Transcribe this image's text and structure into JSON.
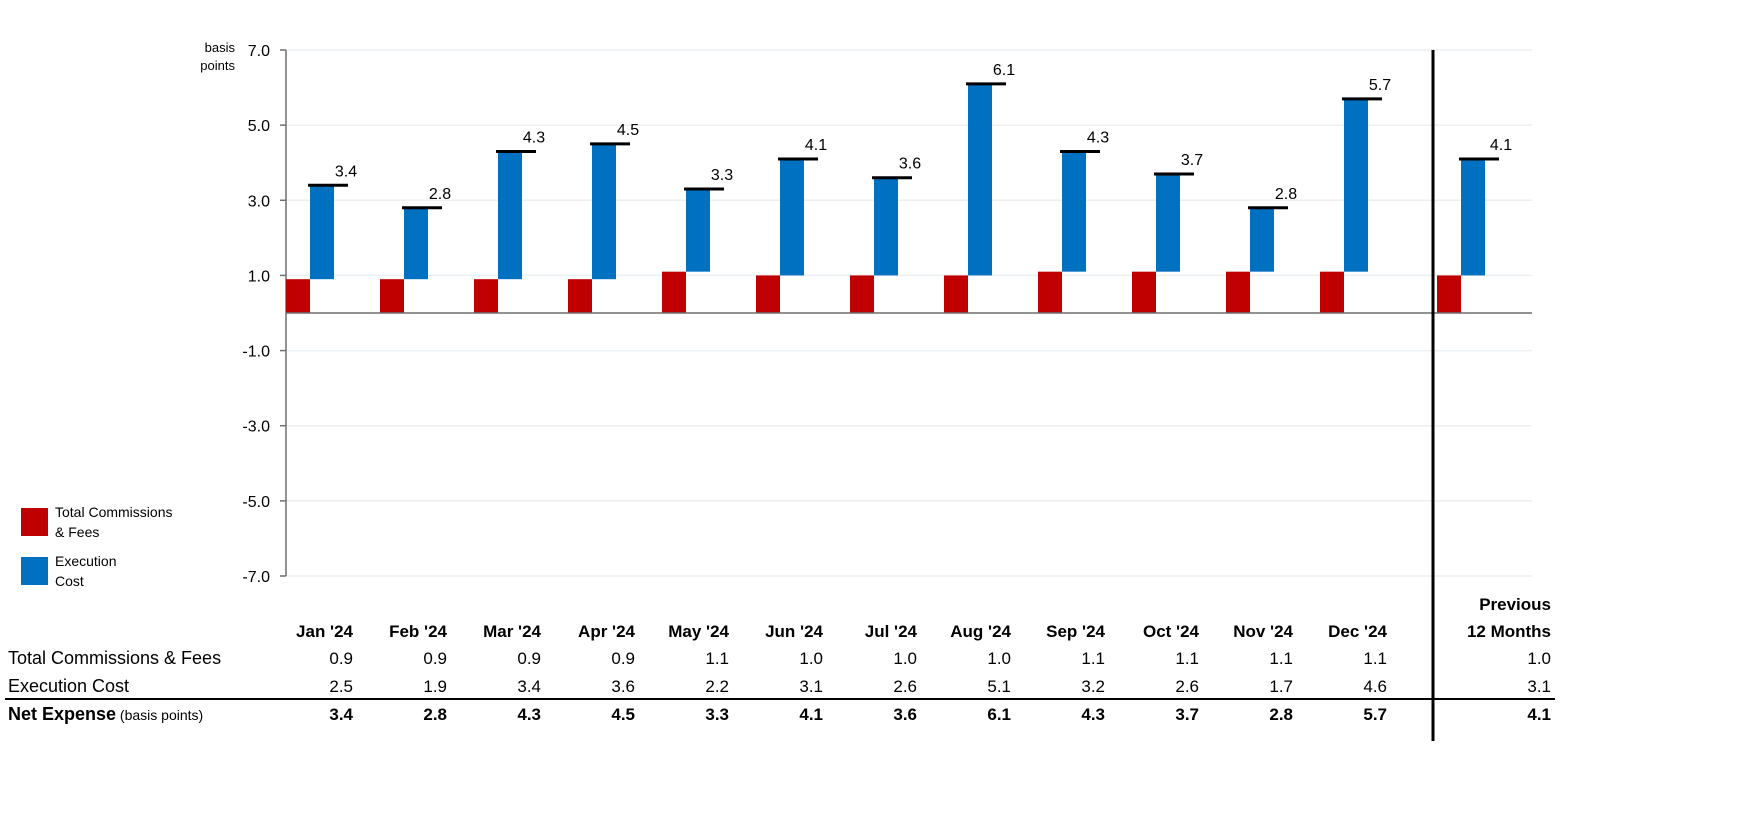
{
  "chart_data": {
    "type": "bar",
    "unit_label": [
      "basis",
      "points"
    ],
    "y_ticks": [
      "7.0",
      "5.0",
      "3.0",
      "1.0",
      "-1.0",
      "-3.0",
      "-5.0",
      "-7.0"
    ],
    "ylim": [
      -7,
      7
    ],
    "categories": [
      "Jan '24",
      "Feb '24",
      "Mar '24",
      "Apr '24",
      "May '24",
      "Jun '24",
      "Jul '24",
      "Aug '24",
      "Sep '24",
      "Oct '24",
      "Nov '24",
      "Dec '24"
    ],
    "summary_category": [
      "Previous",
      "12 Months"
    ],
    "series": [
      {
        "name": "Total Commissions & Fees",
        "legend": [
          "Total Commissions",
          "& Fees"
        ],
        "color": "#C00000",
        "values": [
          0.9,
          0.9,
          0.9,
          0.9,
          1.1,
          1.0,
          1.0,
          1.0,
          1.1,
          1.1,
          1.1,
          1.1
        ],
        "summary": 1.0
      },
      {
        "name": "Execution Cost",
        "legend": [
          "Execution",
          "Cost"
        ],
        "color": "#0070C0",
        "values": [
          2.5,
          1.9,
          3.4,
          3.6,
          2.2,
          3.1,
          2.6,
          5.1,
          3.2,
          2.6,
          1.7,
          4.6
        ],
        "summary": 3.1
      }
    ],
    "net_expense": {
      "values": [
        3.4,
        2.8,
        4.3,
        4.5,
        3.3,
        4.1,
        3.6,
        6.1,
        4.3,
        3.7,
        2.8,
        5.7
      ],
      "summary": 4.1
    },
    "grid": true
  },
  "table": {
    "rows": [
      {
        "label": "Total Commissions & Fees",
        "cells": [
          "0.9",
          "0.9",
          "0.9",
          "0.9",
          "1.1",
          "1.0",
          "1.0",
          "1.0",
          "1.1",
          "1.1",
          "1.1",
          "1.1"
        ],
        "summary": "1.0"
      },
      {
        "label": "Execution Cost",
        "cells": [
          "2.5",
          "1.9",
          "3.4",
          "3.6",
          "2.2",
          "3.1",
          "2.6",
          "5.1",
          "3.2",
          "2.6",
          "1.7",
          "4.6"
        ],
        "summary": "3.1"
      },
      {
        "label": "Net Expense",
        "label_note": "(basis points)",
        "cells": [
          "3.4",
          "2.8",
          "4.3",
          "4.5",
          "3.3",
          "4.1",
          "3.6",
          "6.1",
          "4.3",
          "3.7",
          "2.8",
          "5.7"
        ],
        "summary": "4.1"
      }
    ]
  }
}
